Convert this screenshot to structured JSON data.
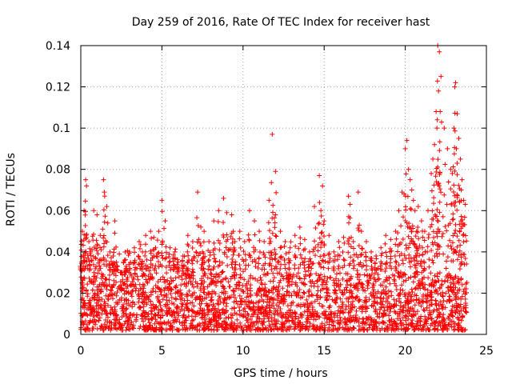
{
  "chart_data": {
    "type": "scatter",
    "title": "Day 259 of 2016, Rate Of TEC Index for receiver hast",
    "xlabel": "GPS time / hours",
    "ylabel": "ROTI / TECUs",
    "xlim": [
      0,
      25
    ],
    "ylim": [
      0,
      0.14
    ],
    "xticks": [
      0,
      5,
      10,
      15,
      20,
      25
    ],
    "xtick_labels": [
      "0",
      "5",
      "10",
      "15",
      "20",
      "25"
    ],
    "yticks": [
      0,
      0.02,
      0.04,
      0.06,
      0.08,
      0.1,
      0.12,
      0.14
    ],
    "ytick_labels": [
      "0",
      "0.02",
      "0.04",
      "0.06",
      "0.08",
      "0.1",
      "0.12",
      "0.14"
    ],
    "grid": true,
    "marker": "+",
    "color": "#ff0000",
    "series": [
      {
        "name": "ROTI",
        "x": [
          0.05,
          0.1,
          0.2,
          0.3,
          0.35,
          0.5,
          0.6,
          0.8,
          1.0,
          1.2,
          1.4,
          1.45,
          1.6,
          1.8,
          2.0,
          2.2,
          2.5,
          2.8,
          3.0,
          3.3,
          3.6,
          3.8,
          4.0,
          4.3,
          4.5,
          4.8,
          5.0,
          5.2,
          5.5,
          5.8,
          6.0,
          6.3,
          6.6,
          6.9,
          7.2,
          7.4,
          7.6,
          7.9,
          8.2,
          8.5,
          8.8,
          9.0,
          9.3,
          9.5,
          9.8,
          10.1,
          10.4,
          10.7,
          11.0,
          11.3,
          11.6,
          11.8,
          12.0,
          12.3,
          12.6,
          12.9,
          13.2,
          13.5,
          13.8,
          14.1,
          14.4,
          14.7,
          14.8,
          15.0,
          15.3,
          15.6,
          15.9,
          16.2,
          16.5,
          16.8,
          17.1,
          17.3,
          17.6,
          17.9,
          18.2,
          18.5,
          18.8,
          19.1,
          19.4,
          19.6,
          19.8,
          20.0,
          20.1,
          20.2,
          20.3,
          20.4,
          20.5,
          20.6,
          20.8,
          21.0,
          21.2,
          21.4,
          21.6,
          21.7,
          21.8,
          21.9,
          22.0,
          22.1,
          22.2,
          22.4,
          22.6,
          22.8,
          22.9,
          23.0,
          23.1,
          23.2,
          23.3,
          23.4,
          23.5,
          23.6,
          23.7,
          0.25,
          2.1,
          7.5,
          9.4,
          11.7,
          12.0,
          14.9,
          16.6,
          20.7,
          21.95,
          22.05,
          22.15,
          23.05,
          23.15,
          23.45
        ],
        "y": [
          0.035,
          0.05,
          0.06,
          0.075,
          0.072,
          0.045,
          0.04,
          0.06,
          0.058,
          0.048,
          0.075,
          0.069,
          0.062,
          0.04,
          0.038,
          0.035,
          0.03,
          0.033,
          0.04,
          0.042,
          0.045,
          0.04,
          0.048,
          0.05,
          0.047,
          0.05,
          0.065,
          0.055,
          0.042,
          0.04,
          0.035,
          0.038,
          0.048,
          0.045,
          0.069,
          0.052,
          0.05,
          0.045,
          0.055,
          0.06,
          0.066,
          0.059,
          0.058,
          0.045,
          0.05,
          0.045,
          0.06,
          0.055,
          0.05,
          0.045,
          0.065,
          0.097,
          0.079,
          0.05,
          0.045,
          0.042,
          0.048,
          0.052,
          0.046,
          0.04,
          0.062,
          0.077,
          0.06,
          0.055,
          0.048,
          0.04,
          0.045,
          0.047,
          0.067,
          0.045,
          0.069,
          0.05,
          0.045,
          0.04,
          0.038,
          0.042,
          0.048,
          0.046,
          0.05,
          0.06,
          0.069,
          0.09,
          0.094,
          0.08,
          0.075,
          0.07,
          0.065,
          0.06,
          0.062,
          0.055,
          0.05,
          0.06,
          0.078,
          0.085,
          0.092,
          0.108,
          0.14,
          0.137,
          0.125,
          0.1,
          0.09,
          0.08,
          0.078,
          0.1,
          0.122,
          0.107,
          0.095,
          0.085,
          0.075,
          0.065,
          0.063,
          0.04,
          0.055,
          0.04,
          0.05,
          0.045,
          0.058,
          0.072,
          0.063,
          0.05,
          0.1,
          0.118,
          0.108,
          0.12,
          0.09,
          0.07
        ]
      }
    ],
    "density_band": {
      "y_low": 0.002,
      "y_high": 0.03,
      "x_start": 0,
      "x_end": 23.8
    }
  }
}
